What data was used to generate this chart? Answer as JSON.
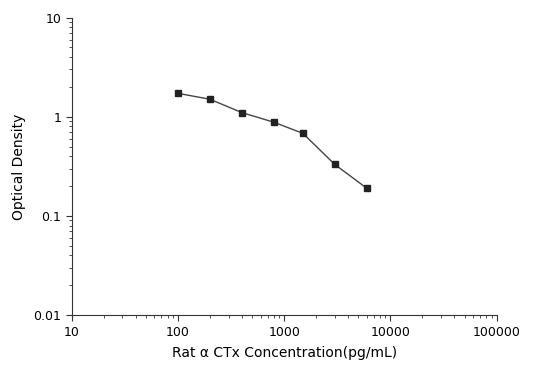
{
  "x": [
    100,
    200,
    400,
    800,
    1500,
    3000,
    6000
  ],
  "y": [
    1.72,
    1.5,
    1.1,
    0.88,
    0.68,
    0.33,
    0.19
  ],
  "xlim": [
    10,
    100000
  ],
  "ylim": [
    0.01,
    10
  ],
  "xlabel": "Rat α CTx Concentration(pg/mL)",
  "ylabel": "Optical Density",
  "line_color": "#444444",
  "marker": "s",
  "marker_color": "#222222",
  "marker_size": 5,
  "line_width": 1.0,
  "background_color": "#ffffff",
  "xticks": [
    10,
    100,
    1000,
    10000,
    100000
  ],
  "xticklabels": [
    "10",
    "100",
    "1000",
    "10000",
    "100000"
  ],
  "yticks": [
    0.01,
    0.1,
    1,
    10
  ],
  "yticklabels": [
    "0.01",
    "0.1",
    "1",
    "10"
  ]
}
